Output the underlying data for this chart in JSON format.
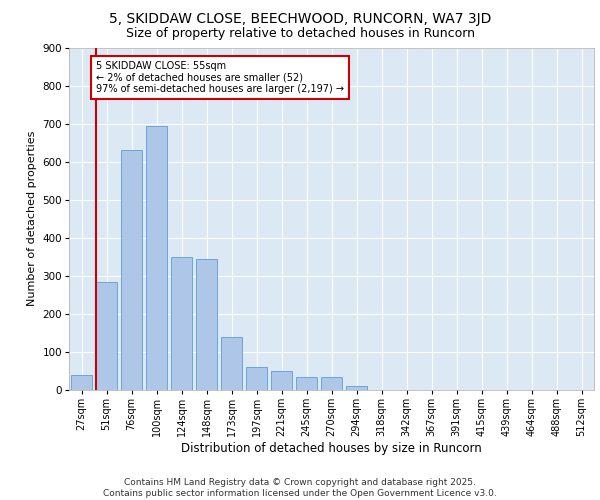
{
  "title_line1": "5, SKIDDAW CLOSE, BEECHWOOD, RUNCORN, WA7 3JD",
  "title_line2": "Size of property relative to detached houses in Runcorn",
  "xlabel": "Distribution of detached houses by size in Runcorn",
  "ylabel": "Number of detached properties",
  "categories": [
    "27sqm",
    "51sqm",
    "76sqm",
    "100sqm",
    "124sqm",
    "148sqm",
    "173sqm",
    "197sqm",
    "221sqm",
    "245sqm",
    "270sqm",
    "294sqm",
    "318sqm",
    "342sqm",
    "367sqm",
    "391sqm",
    "415sqm",
    "439sqm",
    "464sqm",
    "488sqm",
    "512sqm"
  ],
  "values": [
    40,
    285,
    630,
    695,
    350,
    345,
    140,
    60,
    50,
    35,
    35,
    10,
    0,
    0,
    0,
    0,
    0,
    0,
    0,
    0,
    0
  ],
  "bar_color": "#aec6e8",
  "bar_edge_color": "#5a9fd4",
  "vline_color": "#cc0000",
  "annotation_text": "5 SKIDDAW CLOSE: 55sqm\n← 2% of detached houses are smaller (52)\n97% of semi-detached houses are larger (2,197) →",
  "annotation_box_color": "#ffffff",
  "annotation_box_edge": "#cc0000",
  "ylim": [
    0,
    900
  ],
  "yticks": [
    0,
    100,
    200,
    300,
    400,
    500,
    600,
    700,
    800,
    900
  ],
  "bg_color": "#dce9f5",
  "fig_bg": "#ffffff",
  "footnote": "Contains HM Land Registry data © Crown copyright and database right 2025.\nContains public sector information licensed under the Open Government Licence v3.0.",
  "title_fontsize": 10,
  "subtitle_fontsize": 9,
  "xlabel_fontsize": 8.5,
  "ylabel_fontsize": 8,
  "footnote_fontsize": 6.5,
  "tick_fontsize": 7
}
